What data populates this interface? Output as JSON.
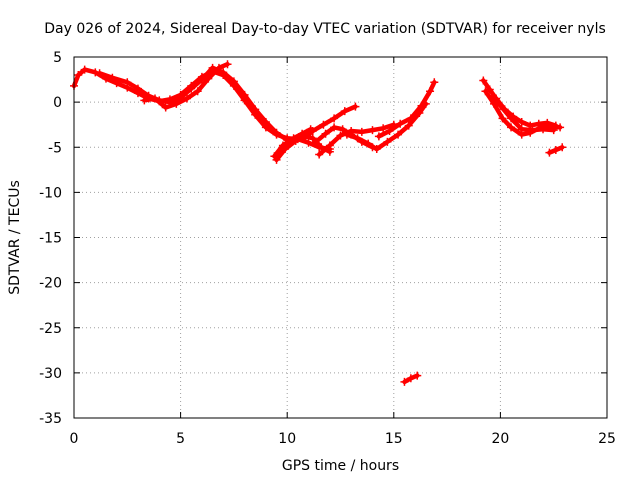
{
  "chart_data": {
    "type": "scatter",
    "title": "Day 026 of 2024, Sidereal Day-to-day VTEC variation (SDTVAR) for receiver nyls",
    "xlabel": "GPS time / hours",
    "ylabel": "SDTVAR / TECUs",
    "xlim": [
      0,
      25
    ],
    "ylim": [
      -35,
      5
    ],
    "xticks": [
      0,
      5,
      10,
      15,
      20,
      25
    ],
    "yticks": [
      5,
      0,
      -5,
      -10,
      -15,
      -20,
      -25,
      -30,
      -35
    ],
    "grid": true,
    "grid_style": "dotted",
    "series": [
      {
        "name": "SDTVAR",
        "color": "#ff0000",
        "marker": "plus",
        "tracks": [
          [
            [
              0.0,
              1.8
            ],
            [
              0.2,
              3.0
            ],
            [
              0.5,
              3.6
            ],
            [
              1.0,
              3.3
            ],
            [
              1.5,
              2.6
            ],
            [
              2.0,
              2.1
            ],
            [
              2.5,
              1.6
            ],
            [
              3.0,
              1.0
            ],
            [
              3.5,
              0.4
            ],
            [
              4.0,
              0.1
            ],
            [
              4.5,
              0.3
            ],
            [
              5.0,
              0.8
            ],
            [
              5.5,
              1.8
            ],
            [
              6.0,
              2.8
            ],
            [
              6.5,
              3.4
            ],
            [
              7.0,
              3.0
            ],
            [
              7.5,
              1.8
            ],
            [
              8.0,
              0.2
            ],
            [
              8.5,
              -1.4
            ],
            [
              9.0,
              -2.8
            ],
            [
              9.5,
              -3.6
            ],
            [
              10.0,
              -4.0
            ],
            [
              10.5,
              -4.1
            ],
            [
              11.0,
              -4.5
            ],
            [
              11.5,
              -5.0
            ],
            [
              12.0,
              -5.2
            ]
          ],
          [
            [
              1.2,
              3.2
            ],
            [
              1.8,
              2.7
            ],
            [
              2.5,
              2.2
            ],
            [
              3.0,
              1.5
            ],
            [
              3.5,
              0.7
            ],
            [
              4.0,
              0.2
            ],
            [
              4.5,
              0.0
            ],
            [
              5.0,
              0.5
            ],
            [
              5.5,
              1.5
            ],
            [
              6.0,
              2.5
            ],
            [
              6.5,
              3.8
            ],
            [
              7.0,
              3.3
            ],
            [
              7.5,
              2.3
            ],
            [
              8.0,
              0.8
            ],
            [
              8.5,
              -0.8
            ],
            [
              9.0,
              -2.2
            ],
            [
              9.5,
              -3.4
            ],
            [
              10.0,
              -4.2
            ]
          ],
          [
            [
              3.3,
              0.2
            ],
            [
              3.8,
              0.4
            ],
            [
              4.3,
              -0.6
            ],
            [
              4.8,
              -0.2
            ],
            [
              5.3,
              0.4
            ],
            [
              5.8,
              1.2
            ],
            [
              6.3,
              2.6
            ],
            [
              6.8,
              3.8
            ],
            [
              7.2,
              4.2
            ]
          ],
          [
            [
              9.5,
              -6.4
            ],
            [
              9.9,
              -5.2
            ],
            [
              10.4,
              -4.3
            ],
            [
              10.8,
              -3.8
            ],
            [
              11.2,
              -4.0
            ],
            [
              11.6,
              -5.0
            ],
            [
              12.0,
              -5.5
            ]
          ],
          [
            [
              9.4,
              -6.0
            ],
            [
              9.8,
              -4.8
            ],
            [
              10.3,
              -4.0
            ],
            [
              10.7,
              -3.5
            ],
            [
              11.1,
              -3.0
            ]
          ],
          [
            [
              10.8,
              -4.0
            ],
            [
              11.2,
              -3.2
            ],
            [
              11.7,
              -2.5
            ],
            [
              12.2,
              -1.8
            ],
            [
              12.7,
              -1.0
            ],
            [
              13.2,
              -0.5
            ]
          ],
          [
            [
              11.3,
              -4.5
            ],
            [
              11.8,
              -3.5
            ],
            [
              12.2,
              -2.8
            ],
            [
              12.6,
              -3.0
            ],
            [
              13.0,
              -3.6
            ],
            [
              13.5,
              -4.4
            ],
            [
              14.0,
              -5.0
            ]
          ],
          [
            [
              11.5,
              -5.8
            ],
            [
              12.0,
              -4.8
            ],
            [
              12.5,
              -3.7
            ],
            [
              13.0,
              -3.2
            ],
            [
              13.5,
              -3.3
            ],
            [
              14.0,
              -3.1
            ],
            [
              14.5,
              -2.9
            ],
            [
              15.0,
              -2.5
            ]
          ],
          [
            [
              12.8,
              -3.6
            ],
            [
              13.3,
              -4.0
            ],
            [
              13.8,
              -4.6
            ],
            [
              14.2,
              -5.2
            ],
            [
              14.7,
              -4.4
            ],
            [
              15.2,
              -3.6
            ],
            [
              15.7,
              -2.6
            ],
            [
              16.2,
              -1.2
            ],
            [
              16.5,
              -0.2
            ]
          ],
          [
            [
              14.3,
              -3.8
            ],
            [
              14.8,
              -3.2
            ],
            [
              15.3,
              -2.4
            ],
            [
              15.8,
              -1.8
            ],
            [
              16.3,
              -0.4
            ],
            [
              16.7,
              1.2
            ],
            [
              16.9,
              2.2
            ]
          ],
          [
            [
              19.2,
              2.4
            ],
            [
              19.5,
              1.4
            ],
            [
              19.8,
              0.4
            ],
            [
              20.2,
              -0.8
            ],
            [
              20.6,
              -1.6
            ],
            [
              21.0,
              -2.2
            ],
            [
              21.4,
              -2.6
            ],
            [
              21.8,
              -2.4
            ],
            [
              22.2,
              -2.3
            ],
            [
              22.6,
              -2.6
            ]
          ],
          [
            [
              19.3,
              1.2
            ],
            [
              19.7,
              -0.2
            ],
            [
              20.1,
              -1.8
            ],
            [
              20.5,
              -2.8
            ],
            [
              21.0,
              -3.6
            ],
            [
              21.4,
              -3.4
            ],
            [
              21.9,
              -2.8
            ],
            [
              22.4,
              -2.7
            ],
            [
              22.8,
              -2.8
            ]
          ],
          [
            [
              19.6,
              0.6
            ],
            [
              20.0,
              -0.4
            ],
            [
              20.5,
              -1.8
            ],
            [
              21.0,
              -3.0
            ],
            [
              21.5,
              -3.1
            ],
            [
              22.0,
              -3.0
            ],
            [
              22.5,
              -3.1
            ]
          ],
          [
            [
              22.3,
              -5.6
            ],
            [
              22.6,
              -5.3
            ],
            [
              22.9,
              -5.0
            ]
          ],
          [
            [
              15.5,
              -31.0
            ],
            [
              15.8,
              -30.6
            ],
            [
              16.1,
              -30.3
            ]
          ]
        ]
      }
    ]
  }
}
